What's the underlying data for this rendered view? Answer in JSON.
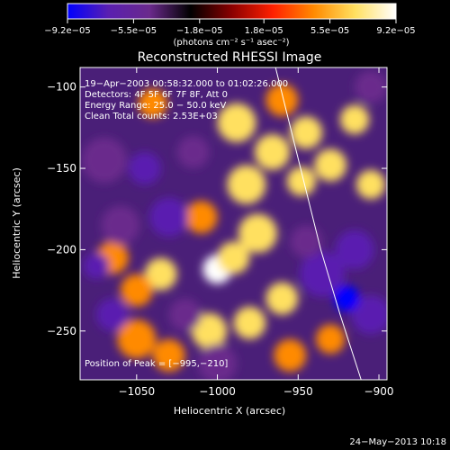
{
  "chart_data": {
    "type": "heatmap",
    "title": "Reconstructed RHESSI Image",
    "xlabel": "Heliocentric X (arcsec)",
    "ylabel": "Heliocentric Y (arcsec)",
    "xlim": [
      -1085,
      -895
    ],
    "ylim": [
      -280,
      -88
    ],
    "x_ticks": [
      -1050,
      -1000,
      -950,
      -900
    ],
    "x_tick_labels": [
      "−1050",
      "−1000",
      "−950",
      "−900"
    ],
    "y_ticks": [
      -100,
      -150,
      -200,
      -250
    ],
    "y_tick_labels": [
      "−100",
      "−150",
      "−200",
      "−250"
    ],
    "colorbar": {
      "ticks": [
        -9.2e-05,
        -5.5e-05,
        -1.8e-05,
        1.8e-05,
        5.5e-05,
        9.2e-05
      ],
      "tick_labels": [
        "−9.2e−05",
        "−5.5e−05",
        "−1.8e−05",
        "1.8e−05",
        "5.5e−05",
        "9.2e−05"
      ],
      "units": "(photons cm⁻² s⁻¹ asec⁻²)",
      "colors": [
        "#0000ff",
        "#5a1fb0",
        "#6a2a8c",
        "#000000",
        "#8a0000",
        "#ff2000",
        "#ff8a00",
        "#ffe060",
        "#ffffff"
      ]
    },
    "annotations": [
      "19−Apr−2003 00:58:32.000 to 01:02:26.000",
      "Detectors: 4F 5F 6F 7F 8F, Att 0",
      "Energy Range: 25.0 − 50.0 keV",
      "Clean    Total counts: 2.53E+03"
    ],
    "peak_label": "Position of Peak = [−995,−210]",
    "peak": [
      -995,
      -210
    ],
    "limb": [
      [
        -964,
        -88
      ],
      [
        -956,
        -120
      ],
      [
        -946,
        -160
      ],
      [
        -936,
        -200
      ],
      [
        -924,
        -240
      ],
      [
        -911,
        -280
      ]
    ],
    "blobs": [
      {
        "x": -1000,
        "y": -212,
        "v": 9.2e-05,
        "r": 9
      },
      {
        "x": -990,
        "y": -205,
        "v": 7.5e-05,
        "r": 10
      },
      {
        "x": -975,
        "y": -190,
        "v": 6e-05,
        "r": 12
      },
      {
        "x": -982,
        "y": -160,
        "v": 6.5e-05,
        "r": 12
      },
      {
        "x": -966,
        "y": -140,
        "v": 6.8e-05,
        "r": 11
      },
      {
        "x": -988,
        "y": -122,
        "v": 6e-05,
        "r": 12
      },
      {
        "x": -960,
        "y": -108,
        "v": 5.5e-05,
        "r": 10
      },
      {
        "x": -945,
        "y": -128,
        "v": 6e-05,
        "r": 10
      },
      {
        "x": -948,
        "y": -158,
        "v": 7e-05,
        "r": 9
      },
      {
        "x": -930,
        "y": -148,
        "v": 6.2e-05,
        "r": 10
      },
      {
        "x": -915,
        "y": -120,
        "v": 6e-05,
        "r": 9
      },
      {
        "x": -905,
        "y": -160,
        "v": 6.5e-05,
        "r": 9
      },
      {
        "x": -1035,
        "y": -215,
        "v": 6.4e-05,
        "r": 10
      },
      {
        "x": -1050,
        "y": -225,
        "v": 5e-05,
        "r": 10
      },
      {
        "x": -1065,
        "y": -205,
        "v": 4.5e-05,
        "r": 10
      },
      {
        "x": -1005,
        "y": -250,
        "v": 6.5e-05,
        "r": 11
      },
      {
        "x": -980,
        "y": -245,
        "v": 6.3e-05,
        "r": 10
      },
      {
        "x": -960,
        "y": -230,
        "v": 5.8e-05,
        "r": 10
      },
      {
        "x": -1050,
        "y": -255,
        "v": 5.4e-05,
        "r": 12
      },
      {
        "x": -1030,
        "y": -265,
        "v": 5e-05,
        "r": 10
      },
      {
        "x": -1040,
        "y": -110,
        "v": 5.3e-05,
        "r": 9
      },
      {
        "x": -1010,
        "y": -180,
        "v": 3.8e-05,
        "r": 10
      },
      {
        "x": -955,
        "y": -265,
        "v": 4.2e-05,
        "r": 10
      },
      {
        "x": -930,
        "y": -255,
        "v": 3.6e-05,
        "r": 9
      },
      {
        "x": -1070,
        "y": -145,
        "v": -4.5e-05,
        "r": 14
      },
      {
        "x": -1045,
        "y": -150,
        "v": -8e-05,
        "r": 10
      },
      {
        "x": -1030,
        "y": -180,
        "v": -6e-05,
        "r": 12
      },
      {
        "x": -1060,
        "y": -185,
        "v": -5.5e-05,
        "r": 12
      },
      {
        "x": -1065,
        "y": -240,
        "v": -6e-05,
        "r": 10
      },
      {
        "x": -1075,
        "y": -210,
        "v": -8e-05,
        "r": 8
      },
      {
        "x": -1020,
        "y": -240,
        "v": -5e-05,
        "r": 10
      },
      {
        "x": -1015,
        "y": -140,
        "v": -5e-05,
        "r": 10
      },
      {
        "x": -935,
        "y": -215,
        "v": -6.5e-05,
        "r": 14
      },
      {
        "x": -915,
        "y": -200,
        "v": -7e-05,
        "r": 12
      },
      {
        "x": -905,
        "y": -240,
        "v": -6e-05,
        "r": 12
      },
      {
        "x": -945,
        "y": -195,
        "v": -5e-05,
        "r": 10
      },
      {
        "x": -920,
        "y": -230,
        "v": -8.5e-05,
        "r": 8
      },
      {
        "x": -1000,
        "y": -270,
        "v": -4e-05,
        "r": 12
      },
      {
        "x": -905,
        "y": -100,
        "v": -4e-05,
        "r": 10
      }
    ]
  },
  "timestamp": "24−May−2013 10:18"
}
